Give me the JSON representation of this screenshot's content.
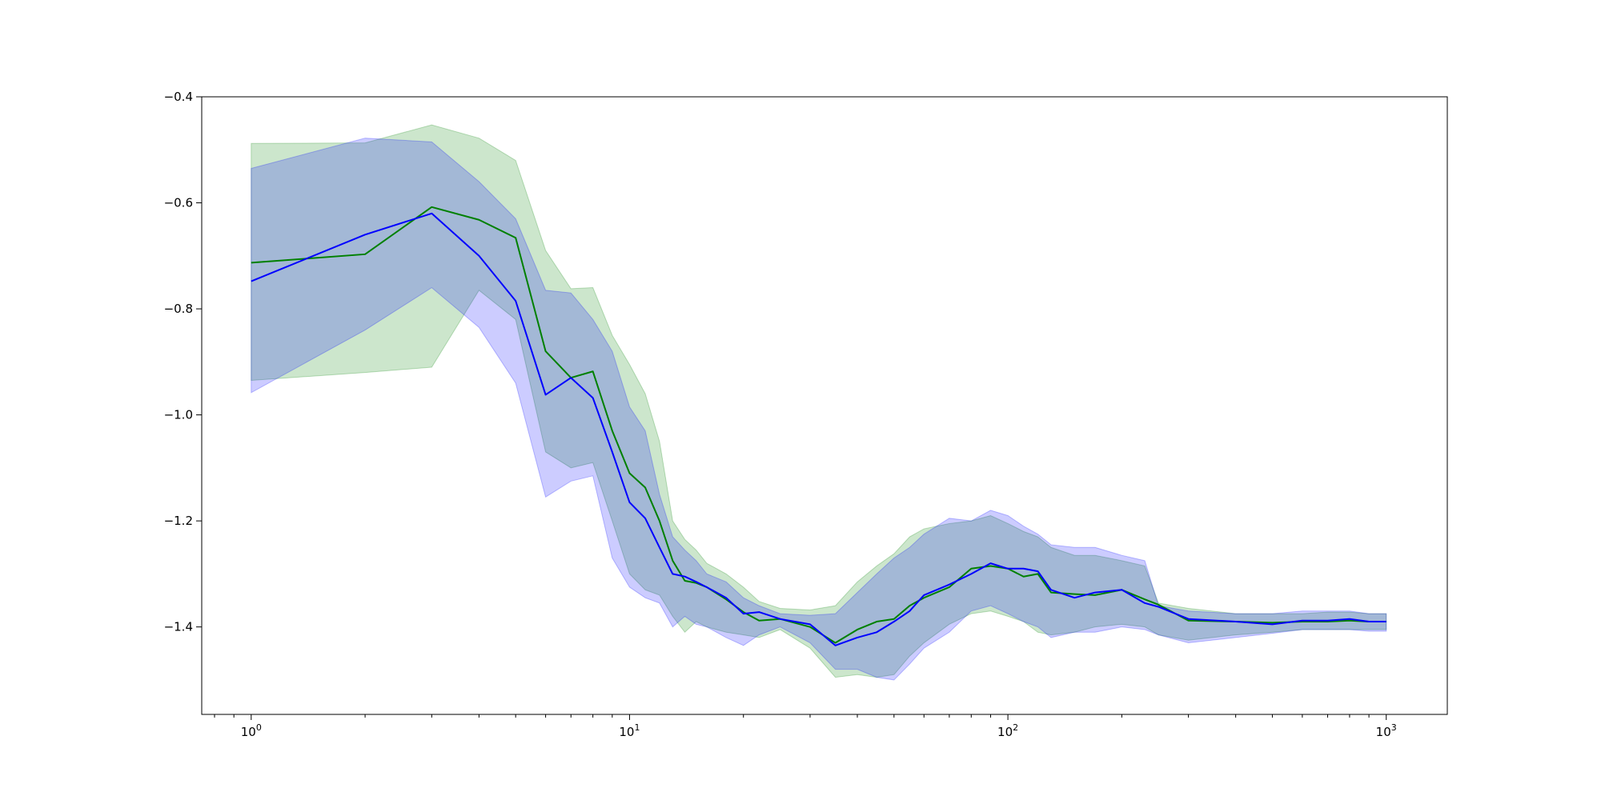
{
  "chart_data": {
    "type": "line",
    "title": "",
    "xlabel": "",
    "ylabel": "",
    "xscale": "log",
    "xlim": [
      0.74,
      1450
    ],
    "ylim": [
      -1.565,
      -0.4
    ],
    "grid": false,
    "legend": "none",
    "x_ticks": [
      {
        "value": 1,
        "base": "10",
        "exp": "0"
      },
      {
        "value": 10,
        "base": "10",
        "exp": "1"
      },
      {
        "value": 100,
        "base": "10",
        "exp": "2"
      },
      {
        "value": 1000,
        "base": "10",
        "exp": "3"
      }
    ],
    "y_ticks": [
      {
        "value": -0.4,
        "label": "−0.4"
      },
      {
        "value": -0.6,
        "label": "−0.6"
      },
      {
        "value": -0.8,
        "label": "−0.8"
      },
      {
        "value": -1.0,
        "label": "−1.0"
      },
      {
        "value": -1.2,
        "label": "−1.2"
      },
      {
        "value": -1.4,
        "label": "−1.4"
      }
    ],
    "series": [
      {
        "color": "#008000",
        "band_color": "#008000",
        "band_opacity": 0.2,
        "x": [
          1,
          2,
          3,
          4,
          5,
          6,
          7,
          8,
          9,
          10,
          11,
          12,
          13,
          14,
          15,
          16,
          18,
          20,
          22,
          25,
          30,
          35,
          40,
          45,
          50,
          55,
          60,
          70,
          80,
          90,
          100,
          110,
          120,
          130,
          150,
          170,
          200,
          230,
          250,
          300,
          400,
          500,
          600,
          700,
          800,
          900,
          1000
        ],
        "y": [
          -0.713,
          -0.697,
          -0.608,
          -0.632,
          -0.666,
          -0.88,
          -0.93,
          -0.918,
          -1.03,
          -1.11,
          -1.137,
          -1.2,
          -1.275,
          -1.313,
          -1.317,
          -1.325,
          -1.348,
          -1.372,
          -1.388,
          -1.385,
          -1.4,
          -1.43,
          -1.405,
          -1.39,
          -1.385,
          -1.36,
          -1.345,
          -1.325,
          -1.29,
          -1.285,
          -1.29,
          -1.305,
          -1.3,
          -1.335,
          -1.338,
          -1.34,
          -1.33,
          -1.348,
          -1.358,
          -1.388,
          -1.39,
          -1.392,
          -1.39,
          -1.39,
          -1.388,
          -1.39,
          -1.39
        ],
        "upper": [
          -0.488,
          -0.487,
          -0.453,
          -0.478,
          -0.52,
          -0.69,
          -0.762,
          -0.76,
          -0.85,
          -0.905,
          -0.96,
          -1.05,
          -1.2,
          -1.235,
          -1.255,
          -1.28,
          -1.3,
          -1.325,
          -1.352,
          -1.365,
          -1.368,
          -1.36,
          -1.315,
          -1.285,
          -1.262,
          -1.23,
          -1.215,
          -1.205,
          -1.2,
          -1.19,
          -1.205,
          -1.22,
          -1.23,
          -1.25,
          -1.265,
          -1.265,
          -1.275,
          -1.285,
          -1.355,
          -1.365,
          -1.375,
          -1.375,
          -1.375,
          -1.372,
          -1.372,
          -1.375,
          -1.375
        ],
        "lower": [
          -0.935,
          -0.92,
          -0.91,
          -0.765,
          -0.82,
          -1.07,
          -1.1,
          -1.09,
          -1.2,
          -1.3,
          -1.33,
          -1.34,
          -1.38,
          -1.41,
          -1.39,
          -1.4,
          -1.41,
          -1.415,
          -1.42,
          -1.405,
          -1.44,
          -1.495,
          -1.49,
          -1.495,
          -1.49,
          -1.455,
          -1.43,
          -1.395,
          -1.375,
          -1.37,
          -1.38,
          -1.39,
          -1.41,
          -1.415,
          -1.41,
          -1.4,
          -1.395,
          -1.4,
          -1.415,
          -1.425,
          -1.415,
          -1.41,
          -1.405,
          -1.405,
          -1.405,
          -1.405,
          -1.405
        ]
      },
      {
        "color": "#0000ff",
        "band_color": "#0000ff",
        "band_opacity": 0.2,
        "x": [
          1,
          2,
          3,
          4,
          5,
          6,
          7,
          8,
          9,
          10,
          11,
          12,
          13,
          14,
          15,
          16,
          18,
          20,
          22,
          25,
          30,
          35,
          40,
          45,
          50,
          55,
          60,
          70,
          80,
          90,
          100,
          110,
          120,
          130,
          150,
          170,
          200,
          230,
          250,
          300,
          400,
          500,
          600,
          700,
          800,
          900,
          1000
        ],
        "y": [
          -0.748,
          -0.66,
          -0.62,
          -0.7,
          -0.785,
          -0.962,
          -0.93,
          -0.968,
          -1.07,
          -1.165,
          -1.195,
          -1.25,
          -1.3,
          -1.305,
          -1.315,
          -1.325,
          -1.345,
          -1.375,
          -1.372,
          -1.385,
          -1.395,
          -1.435,
          -1.42,
          -1.41,
          -1.39,
          -1.37,
          -1.34,
          -1.32,
          -1.3,
          -1.28,
          -1.29,
          -1.29,
          -1.295,
          -1.33,
          -1.345,
          -1.335,
          -1.33,
          -1.355,
          -1.362,
          -1.385,
          -1.39,
          -1.395,
          -1.388,
          -1.388,
          -1.385,
          -1.39,
          -1.39
        ],
        "upper": [
          -0.535,
          -0.478,
          -0.485,
          -0.56,
          -0.63,
          -0.765,
          -0.77,
          -0.82,
          -0.88,
          -0.985,
          -1.03,
          -1.15,
          -1.23,
          -1.255,
          -1.275,
          -1.3,
          -1.315,
          -1.345,
          -1.36,
          -1.375,
          -1.378,
          -1.375,
          -1.335,
          -1.3,
          -1.27,
          -1.25,
          -1.225,
          -1.195,
          -1.2,
          -1.18,
          -1.19,
          -1.21,
          -1.225,
          -1.245,
          -1.25,
          -1.25,
          -1.265,
          -1.275,
          -1.36,
          -1.37,
          -1.375,
          -1.375,
          -1.37,
          -1.37,
          -1.37,
          -1.375,
          -1.375
        ],
        "lower": [
          -0.958,
          -0.84,
          -0.76,
          -0.835,
          -0.94,
          -1.155,
          -1.125,
          -1.115,
          -1.27,
          -1.325,
          -1.345,
          -1.355,
          -1.4,
          -1.38,
          -1.395,
          -1.4,
          -1.42,
          -1.435,
          -1.415,
          -1.4,
          -1.43,
          -1.48,
          -1.48,
          -1.495,
          -1.5,
          -1.47,
          -1.44,
          -1.41,
          -1.37,
          -1.36,
          -1.375,
          -1.39,
          -1.4,
          -1.42,
          -1.41,
          -1.41,
          -1.4,
          -1.405,
          -1.415,
          -1.43,
          -1.42,
          -1.412,
          -1.405,
          -1.405,
          -1.405,
          -1.408,
          -1.408
        ]
      }
    ]
  }
}
